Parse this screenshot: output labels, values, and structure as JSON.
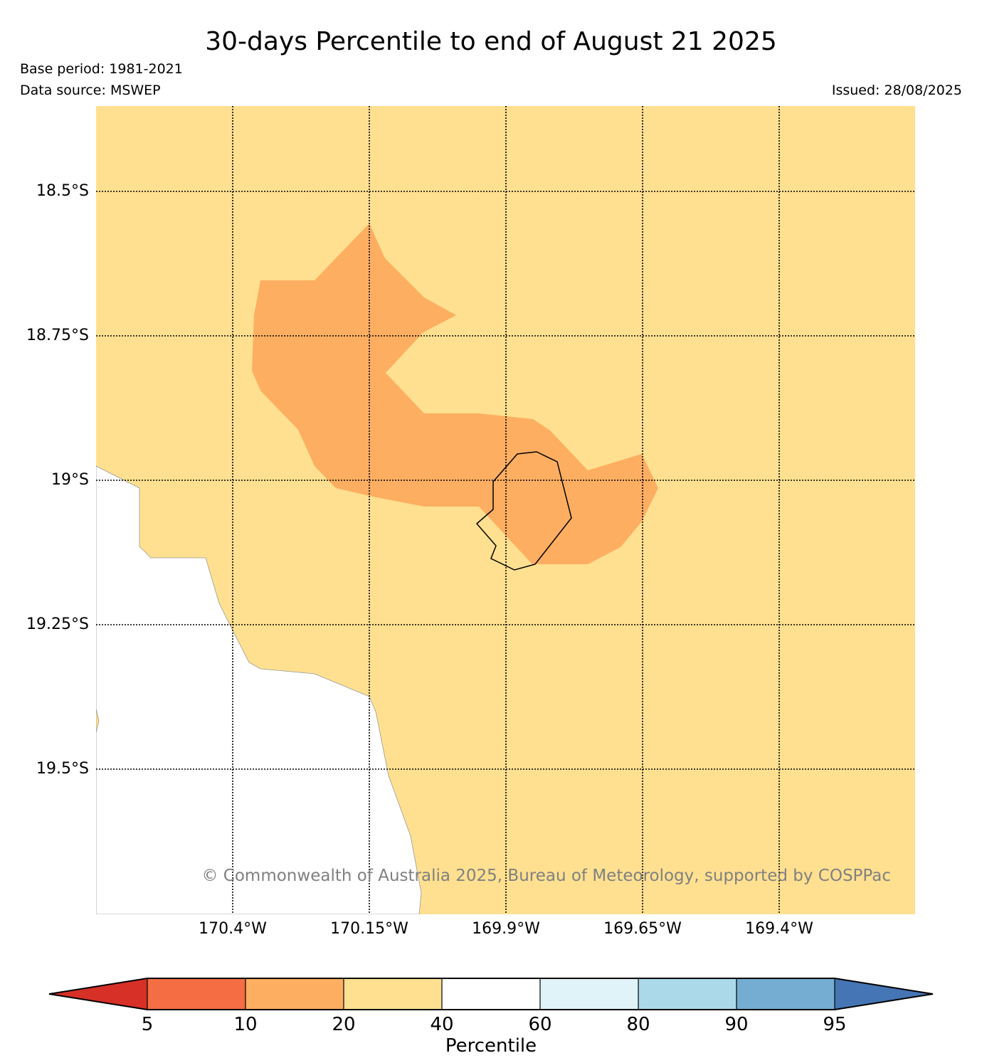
{
  "header": {
    "title": "30-days Percentile to end of August 21 2025",
    "base_period": "Base period: 1981-2021",
    "data_source": "Data source: MSWEP",
    "issued": "Issued: 28/08/2025"
  },
  "map": {
    "latitude_labels": [
      "18.5°S",
      "18.75°S",
      "19°S",
      "19.25°S",
      "19.5°S"
    ],
    "longitude_labels": [
      "170.4°W",
      "170.15°W",
      "169.9°W",
      "169.65°W",
      "169.4°W"
    ],
    "copyright": "© Commonwealth of Australia 2025, Bureau of Meteorology, supported by COSPPac",
    "colors": {
      "land_20_40": "#fee090",
      "land_10_20": "#fdae61",
      "ocean": "#ffffff",
      "grid": "#000000"
    }
  },
  "colorbar": {
    "title": "Percentile",
    "tick_labels": [
      "5",
      "10",
      "20",
      "40",
      "60",
      "80",
      "90",
      "95"
    ],
    "colors": [
      "#d73027",
      "#f46d43",
      "#fdae61",
      "#fee090",
      "#ffffff",
      "#e0f3f8",
      "#abd9e9",
      "#74add1",
      "#4575b4"
    ]
  }
}
